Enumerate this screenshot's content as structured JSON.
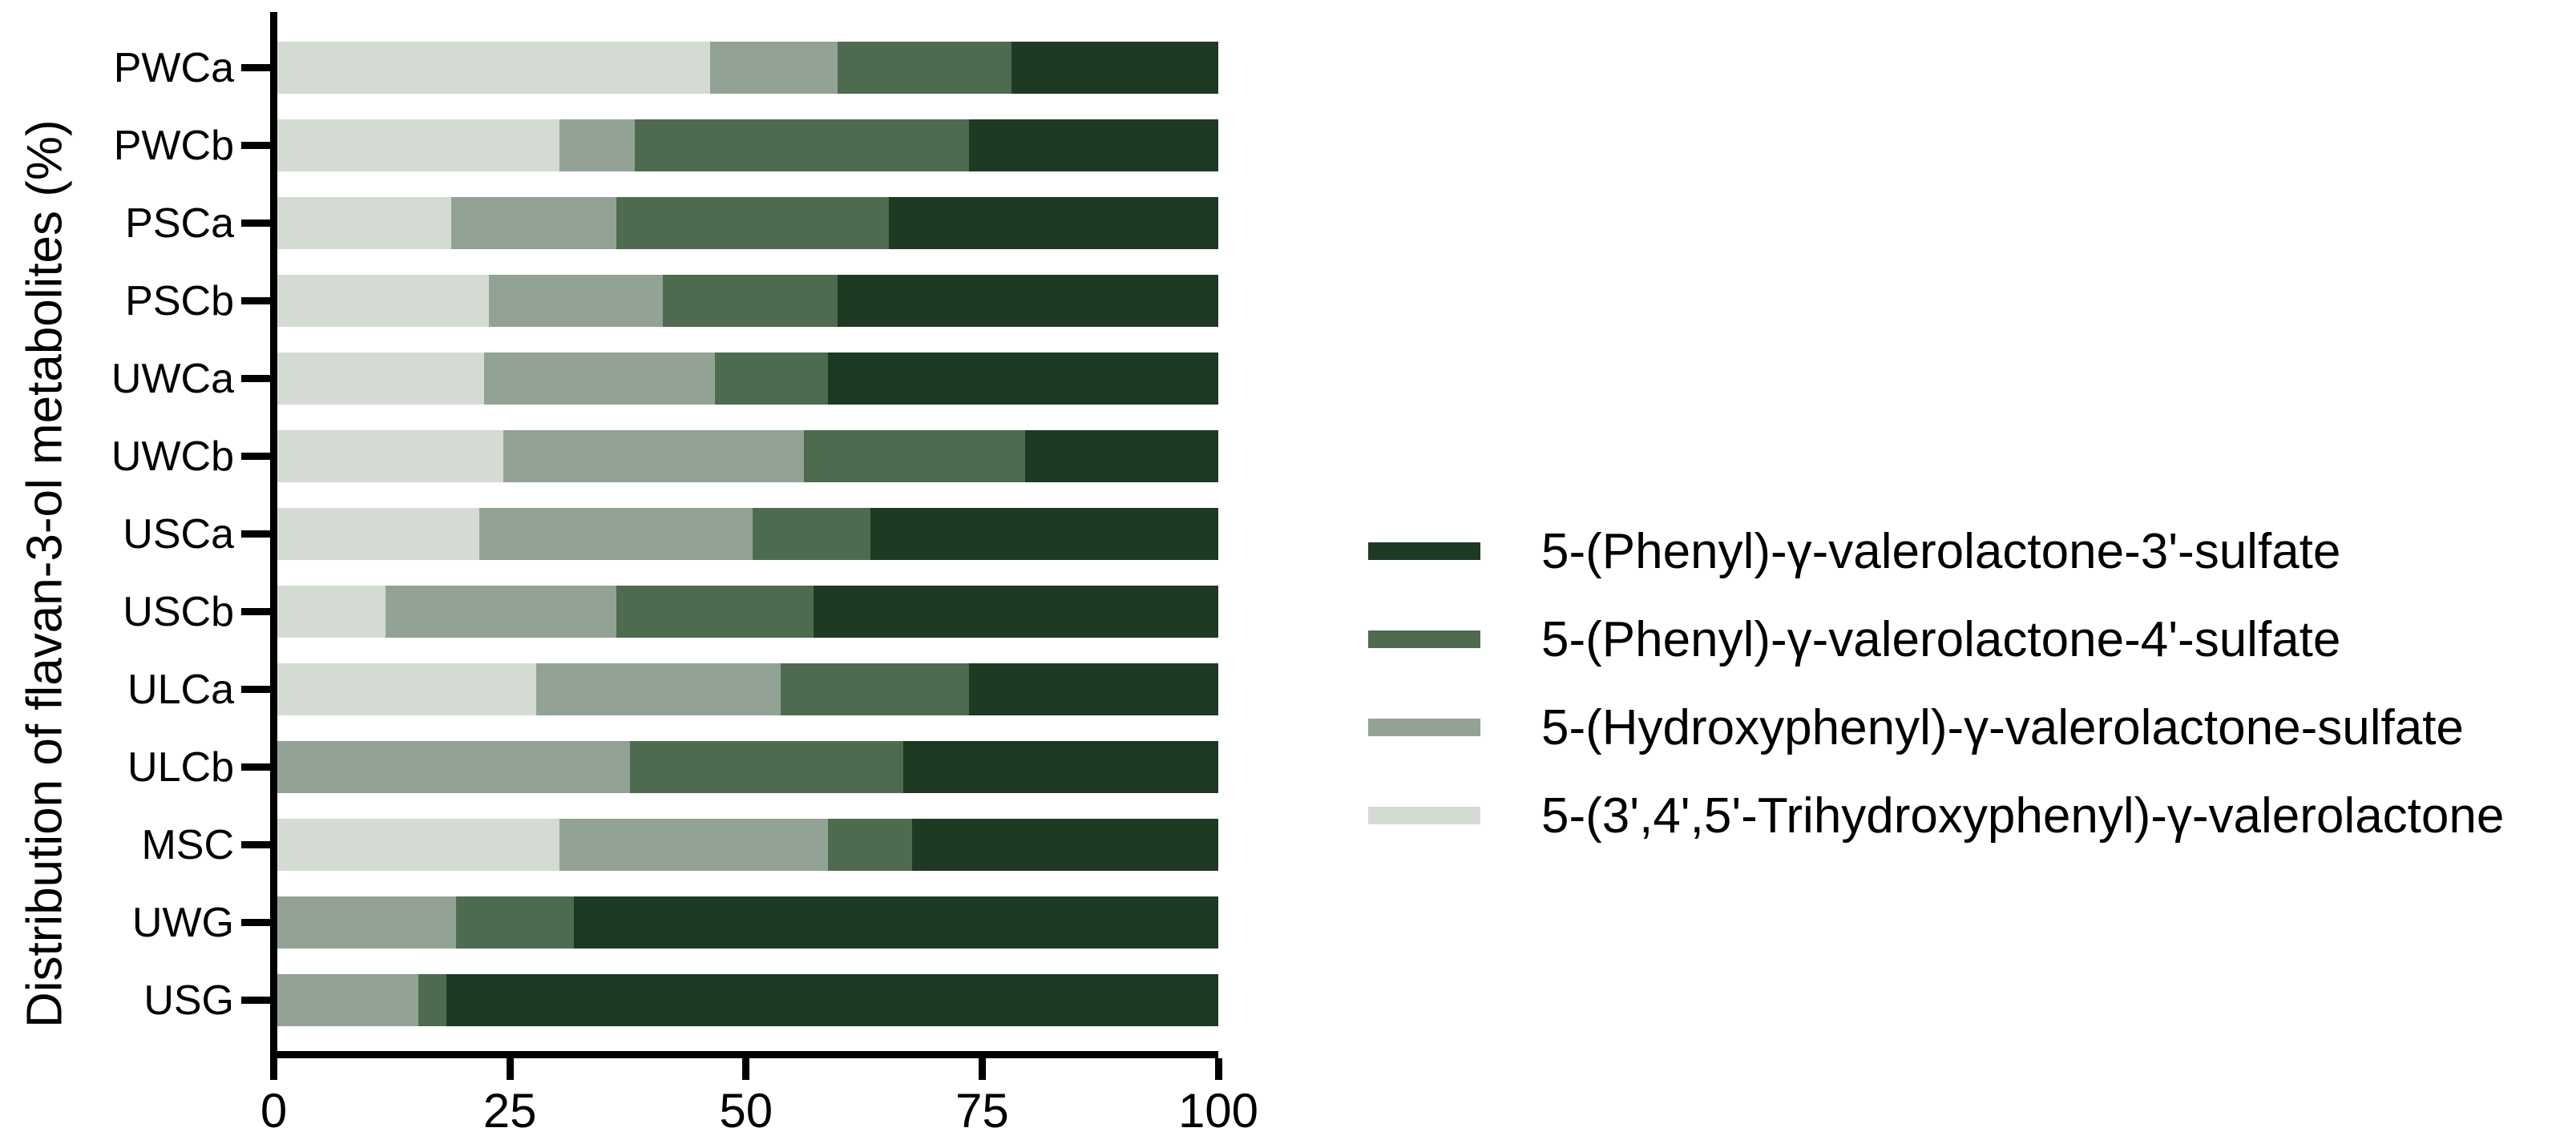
{
  "figure": {
    "background": "#ffffff",
    "axis_color": "#000000",
    "text_color": "#000000"
  },
  "chart_data": {
    "type": "bar",
    "variant": "horizontal-stacked",
    "title": "",
    "xlabel": "",
    "ylabel": "Distribution of flavan-3-ol metabolites (%)",
    "xlim": [
      0,
      100
    ],
    "x_ticks": [
      0,
      25,
      50,
      75,
      100
    ],
    "grid": false,
    "legend_position": "right",
    "legend_order": "reverse-of-stack",
    "categories": [
      "PWCa",
      "PWCb",
      "PSCa",
      "PSCb",
      "UWCa",
      "UWCb",
      "USCa",
      "USCb",
      "ULCa",
      "ULCb",
      "MSC",
      "UWG",
      "USG"
    ],
    "series": [
      {
        "name": "5-(3',4',5'-Trihydroxyphenyl)-γ-valerolactone",
        "color": "#d4dbd3",
        "values": [
          46,
          30,
          18.5,
          22.5,
          22,
          24,
          21.5,
          11.5,
          27.5,
          0,
          30,
          0,
          0
        ]
      },
      {
        "name": "5-(Hydroxyphenyl)-γ-valerolactone-sulfate",
        "color": "#92a395",
        "values": [
          13.5,
          8,
          17.5,
          18.5,
          24.5,
          32,
          29,
          24.5,
          26,
          37.5,
          28.5,
          19,
          15
        ]
      },
      {
        "name": "5-(Phenyl)-γ-valerolactone-4'-sulfate",
        "color": "#4e6b50",
        "values": [
          18.5,
          35.5,
          29,
          18.5,
          12,
          23.5,
          12.5,
          21,
          20,
          29,
          9,
          12.5,
          3
        ]
      },
      {
        "name": "5-(Phenyl)-γ-valerolactone-3'-sulfate",
        "color": "#1e3a23",
        "values": [
          22,
          26.5,
          35,
          40.5,
          41.5,
          20.5,
          37,
          43,
          26.5,
          33.5,
          32.5,
          68.5,
          82
        ]
      }
    ]
  }
}
